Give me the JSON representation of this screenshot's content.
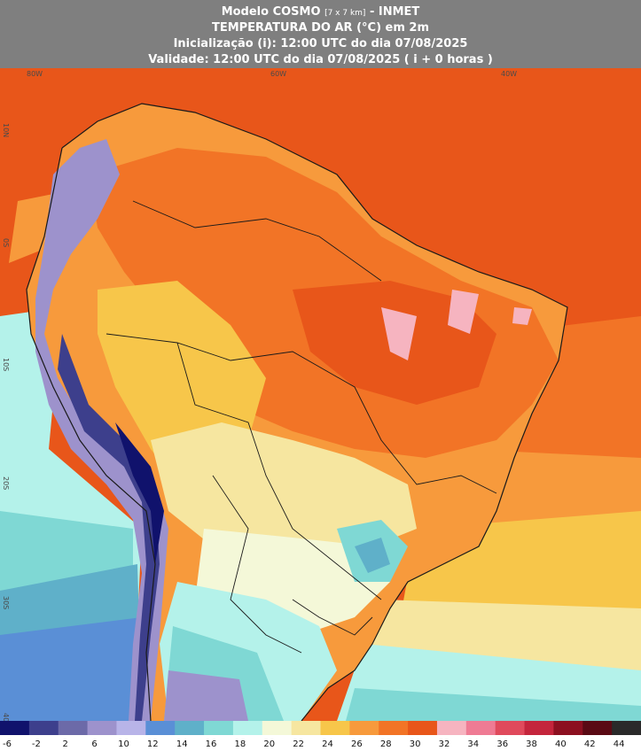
{
  "header": {
    "title_main": "Modelo COSMO",
    "title_resolution": "[7 x 7 km]",
    "title_source": " - INMET",
    "variable": "TEMPERATURA DO AR (°C) em 2m",
    "initialization": "Inicialização (i): 12:00 UTC do dia 07/08/2025",
    "validity": "Validade: 12:00 UTC do dia 07/08/2025 ( i + 0 horas )"
  },
  "axes": {
    "lon_labels": [
      "80W",
      "60W",
      "40W"
    ],
    "lat_labels": [
      "10N",
      "0S",
      "10S",
      "20S",
      "30S",
      "40S"
    ]
  },
  "legend": {
    "unit": "°C",
    "ticks": [
      "-6",
      "-2",
      "2",
      "6",
      "10",
      "12",
      "14",
      "16",
      "18",
      "20",
      "22",
      "24",
      "26",
      "28",
      "30",
      "32",
      "34",
      "36",
      "38",
      "40",
      "42",
      "44"
    ],
    "colors": [
      "#10126c",
      "#3d3f8c",
      "#6c6aa8",
      "#9d92cc",
      "#b8b4e8",
      "#5a8fd6",
      "#5fb0c9",
      "#7fd8d4",
      "#b4f2ea",
      "#f4f8d8",
      "#f6e6a0",
      "#f7c64a",
      "#f79a3c",
      "#f27426",
      "#e8561a",
      "#f6b4c0",
      "#ef7b94",
      "#e04a5c",
      "#c4253c",
      "#8c1020",
      "#5a0a14",
      "#2a2a2a"
    ]
  },
  "map": {
    "colors": {
      "ocean_warm": "#e8561a",
      "land_hot": "#f27426",
      "land_warm": "#f79a3c",
      "land_mild": "#f7c64a",
      "land_cool": "#f6e6a0",
      "land_cooler": "#f4f8d8",
      "cold_sea": "#7fd8d4",
      "sea_mid": "#5fb0c9",
      "sea_cold": "#5a8fd6",
      "andes_cold": "#9d92cc",
      "andes_colder": "#3d3f8c",
      "andes_peak": "#10126c",
      "hot_spot": "#f6b4c0",
      "border": "#1a1a1a"
    }
  }
}
